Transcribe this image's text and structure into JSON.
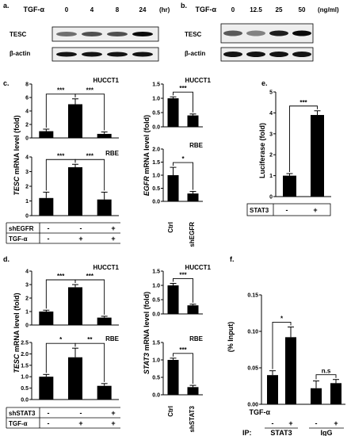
{
  "panels": {
    "a": {
      "letter": "a.",
      "treatment": "TGF-α",
      "unit": "(hr)",
      "doses": [
        "0",
        "4",
        "8",
        "24"
      ],
      "rows": [
        {
          "label": "TESC",
          "intensity": [
            0.45,
            0.6,
            0.6,
            0.95
          ]
        },
        {
          "label": "β-actin",
          "intensity": [
            0.9,
            0.9,
            0.9,
            0.9
          ]
        }
      ]
    },
    "b": {
      "letter": "b.",
      "treatment": "TGF-α",
      "unit": "(ng/ml)",
      "doses": [
        "0",
        "12.5",
        "25",
        "50"
      ],
      "rows": [
        {
          "label": "TESC",
          "intensity": [
            0.55,
            0.35,
            0.85,
            0.95
          ]
        },
        {
          "label": "β-actin",
          "intensity": [
            0.9,
            0.9,
            0.9,
            0.9
          ]
        }
      ]
    },
    "c": {
      "letter": "c.",
      "tesc_ylabel_gene": "TESC",
      "tesc_ylabel_rest": " mRNA level (fold)",
      "egfr_ylabel_gene": "EGFR",
      "egfr_ylabel_rest": " mRNA level (fold)",
      "kd_label": "shEGFR",
      "tgf_label": "TGF-α",
      "kd_signs": [
        "-",
        "-",
        "+"
      ],
      "tgf_signs": [
        "-",
        "+",
        "+"
      ],
      "ctrl_label": "Ctrl"
    },
    "d": {
      "letter": "d.",
      "tesc_ylabel_gene": "TESC",
      "tesc_ylabel_rest": " mRNA level (fold)",
      "stat3_ylabel_gene": "STAT3",
      "stat3_ylabel_rest": " mRNA level (fold)",
      "kd_label": "shSTAT3",
      "tgf_label": "TGF-α",
      "kd_signs": [
        "-",
        "-",
        "+"
      ],
      "tgf_signs": [
        "-",
        "+",
        "+"
      ],
      "ctrl_label": "Ctrl"
    },
    "e": {
      "letter": "e.",
      "ylabel": "Luciferase (fold)",
      "factor_label": "STAT3",
      "factor_signs": [
        "-",
        "+"
      ]
    },
    "f": {
      "letter": "f.",
      "ylabel": "(% Input)",
      "tgf_label": "TGF-α",
      "tgf_signs": [
        "-",
        "+",
        "-",
        "+"
      ],
      "ip_label": "IP:",
      "group_labels": [
        "STAT3",
        "IgG"
      ]
    }
  },
  "chart_data": [
    {
      "id": "c-hucct1-tesc",
      "type": "bar",
      "title": "HUCCT1",
      "categories": [
        "1",
        "2",
        "3"
      ],
      "values": [
        1.0,
        5.0,
        0.6
      ],
      "errors": [
        0.3,
        0.8,
        0.3
      ],
      "ylim": [
        0,
        8
      ],
      "yticks": [
        0,
        2,
        4,
        6,
        8
      ],
      "ytick_labels": [
        "0",
        "2",
        "4",
        "6",
        "8"
      ],
      "sig": [
        {
          "from": 0,
          "to": 1,
          "label": "***"
        },
        {
          "from": 1,
          "to": 2,
          "label": "***"
        }
      ]
    },
    {
      "id": "c-rbe-tesc",
      "type": "bar",
      "title": "RBE",
      "categories": [
        "1",
        "2",
        "3"
      ],
      "values": [
        1.2,
        3.3,
        1.1
      ],
      "errors": [
        0.4,
        0.2,
        0.5
      ],
      "ylim": [
        0,
        4
      ],
      "yticks": [
        0,
        1,
        2,
        3,
        4
      ],
      "ytick_labels": [
        "0",
        "1",
        "2",
        "3",
        "4"
      ],
      "sig": [
        {
          "from": 0,
          "to": 1,
          "label": "***"
        },
        {
          "from": 1,
          "to": 2,
          "label": "***"
        }
      ]
    },
    {
      "id": "c-hucct1-egfr",
      "type": "bar",
      "title": "HUCCT1",
      "categories": [
        "Ctrl",
        "shEGFR"
      ],
      "values": [
        1.0,
        0.4
      ],
      "errors": [
        0.05,
        0.05
      ],
      "ylim": [
        0,
        1.5
      ],
      "yticks": [
        0,
        0.5,
        1.0,
        1.5
      ],
      "ytick_labels": [
        "0.0",
        "0.5",
        "1.0",
        "1.5"
      ],
      "sig": [
        {
          "from": 0,
          "to": 1,
          "label": "***"
        }
      ]
    },
    {
      "id": "c-rbe-egfr",
      "type": "bar",
      "title": "RBE",
      "categories": [
        "Ctrl",
        "shEGFR"
      ],
      "values": [
        1.0,
        0.3
      ],
      "errors": [
        0.3,
        0.08
      ],
      "ylim": [
        0,
        2.0
      ],
      "yticks": [
        0,
        0.5,
        1.0,
        1.5,
        2.0
      ],
      "ytick_labels": [
        "0.0",
        "0.5",
        "1.0",
        "1.5",
        "2.0"
      ],
      "sig": [
        {
          "from": 0,
          "to": 1,
          "label": "*"
        }
      ]
    },
    {
      "id": "e-luciferase",
      "type": "bar",
      "title": "",
      "categories": [
        "-",
        "+"
      ],
      "values": [
        1.0,
        3.9
      ],
      "errors": [
        0.1,
        0.2
      ],
      "ylim": [
        0,
        5
      ],
      "yticks": [
        0,
        1,
        2,
        3,
        4,
        5
      ],
      "ytick_labels": [
        "0",
        "1",
        "2",
        "3",
        "4",
        "5"
      ],
      "sig": [
        {
          "from": 0,
          "to": 1,
          "label": "***"
        }
      ]
    },
    {
      "id": "d-hucct1-tesc",
      "type": "bar",
      "title": "HUCCT1",
      "categories": [
        "1",
        "2",
        "3"
      ],
      "values": [
        1.0,
        2.8,
        0.55
      ],
      "errors": [
        0.1,
        0.2,
        0.1
      ],
      "ylim": [
        0,
        4
      ],
      "yticks": [
        0,
        1,
        2,
        3,
        4
      ],
      "ytick_labels": [
        "0",
        "1",
        "2",
        "3",
        "4"
      ],
      "sig": [
        {
          "from": 0,
          "to": 1,
          "label": "***"
        },
        {
          "from": 1,
          "to": 2,
          "label": "***"
        }
      ]
    },
    {
      "id": "d-rbe-tesc",
      "type": "bar",
      "title": "RBE",
      "categories": [
        "1",
        "2",
        "3"
      ],
      "values": [
        1.0,
        1.85,
        0.6
      ],
      "errors": [
        0.1,
        0.4,
        0.1
      ],
      "ylim": [
        0,
        2.5
      ],
      "yticks": [
        0,
        0.5,
        1.0,
        1.5,
        2.0,
        2.5
      ],
      "ytick_labels": [
        "0.0",
        "0.5",
        "1.0",
        "1.5",
        "2.0",
        "2.5"
      ],
      "sig": [
        {
          "from": 0,
          "to": 1,
          "label": "*"
        },
        {
          "from": 1,
          "to": 2,
          "label": "**"
        }
      ]
    },
    {
      "id": "d-hucct1-stat3",
      "type": "bar",
      "title": "HUCCT1",
      "categories": [
        "Ctrl",
        "shSTAT3"
      ],
      "values": [
        1.0,
        0.3
      ],
      "errors": [
        0.07,
        0.04
      ],
      "ylim": [
        0,
        1.5
      ],
      "yticks": [
        0,
        0.5,
        1.0,
        1.5
      ],
      "ytick_labels": [
        "0.0",
        "0.5",
        "1.0",
        "1.5"
      ],
      "sig": [
        {
          "from": 0,
          "to": 1,
          "label": "***"
        }
      ]
    },
    {
      "id": "d-rbe-stat3",
      "type": "bar",
      "title": "RBE",
      "categories": [
        "Ctrl",
        "shSTAT3"
      ],
      "values": [
        1.0,
        0.22
      ],
      "errors": [
        0.05,
        0.05
      ],
      "ylim": [
        0,
        1.5
      ],
      "yticks": [
        0,
        0.5,
        1.0,
        1.5
      ],
      "ytick_labels": [
        "0.0",
        "0.5",
        "1.0",
        "1.5"
      ],
      "sig": [
        {
          "from": 0,
          "to": 1,
          "label": "***"
        }
      ]
    },
    {
      "id": "f-chip",
      "type": "bar",
      "title": "",
      "categories": [
        "STAT3 -",
        "STAT3 +",
        "IgG -",
        "IgG +"
      ],
      "values": [
        0.04,
        0.092,
        0.022,
        0.029
      ],
      "errors": [
        0.006,
        0.014,
        0.01,
        0.005
      ],
      "ylim": [
        0,
        0.15
      ],
      "yticks": [
        0,
        0.05,
        0.1,
        0.15
      ],
      "ytick_labels": [
        "0.00",
        "0.05",
        "0.10",
        "0.15"
      ],
      "sig": [
        {
          "from": 0,
          "to": 1,
          "label": "*"
        },
        {
          "from": 2,
          "to": 3,
          "label": "n.s"
        }
      ]
    }
  ]
}
